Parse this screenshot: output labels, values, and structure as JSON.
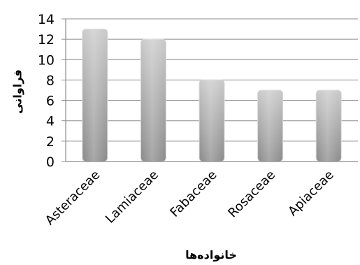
{
  "chart_data": {
    "type": "bar",
    "categories": [
      "Asteraceae",
      "Lamiaceae",
      "Fabaceae",
      "Rosaceae",
      "Apiaceae"
    ],
    "values": [
      13,
      12,
      8,
      7,
      7
    ],
    "title": "",
    "xlabel": "خانواده‌ها",
    "ylabel": "فراوانی",
    "ylim": [
      0,
      14
    ],
    "yticks": [
      0,
      2,
      4,
      6,
      8,
      10,
      12,
      14
    ],
    "grid": true,
    "legend": "none",
    "colors": {
      "bar_light": "#c9c9c9",
      "bar_dark": "#8a8a8a",
      "grid": "#8c8c8c",
      "axis": "#8c8c8c"
    }
  }
}
